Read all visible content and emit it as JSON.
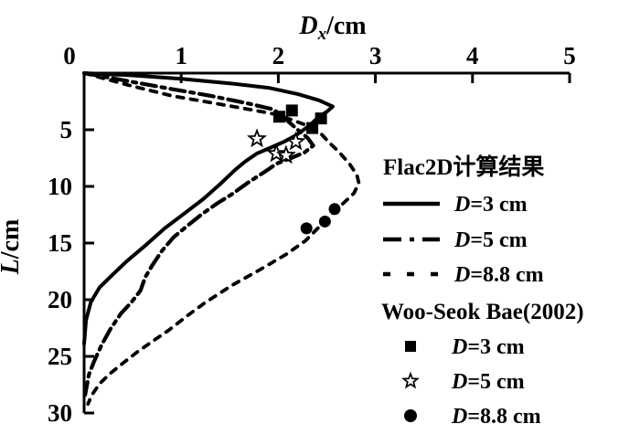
{
  "figure": {
    "background": "#ffffff",
    "ink_color": "#000000"
  },
  "axes": {
    "x": {
      "title_var": "D",
      "title_sub": "x",
      "title_unit": "/cm",
      "ticks": [
        0,
        1,
        2,
        3,
        4,
        5
      ],
      "min": 0,
      "max": 5,
      "position": "top"
    },
    "y": {
      "title_var": "L",
      "title_unit": "/cm",
      "ticks": [
        5,
        10,
        15,
        20,
        25,
        30
      ],
      "min": 0,
      "max": 30,
      "direction": "downward"
    }
  },
  "legend": {
    "group1_title": "Flac2D计算结果",
    "group2_title": "Woo-Seok Bae(2002)",
    "items": [
      {
        "var": "D",
        "value": "=3 cm",
        "swatch": "line-solid",
        "sample_dash": ""
      },
      {
        "var": "D",
        "value": "=5 cm",
        "swatch": "line-dashdot",
        "sample_dash": "20 9 5 9"
      },
      {
        "var": "D",
        "value": "=8.8 cm",
        "swatch": "line-dashed",
        "sample_dash": "8 18"
      },
      {
        "var": "D",
        "value": "=3 cm",
        "swatch": "square-filled"
      },
      {
        "var": "D",
        "value": "=5 cm",
        "swatch": "star-open"
      },
      {
        "var": "D",
        "value": "=8.8 cm",
        "swatch": "circle-filled"
      }
    ]
  },
  "chart_data": {
    "type": "line",
    "title": "Dx/cm vs L/cm (horizontal displacement vs depth)",
    "xlabel": "Dx/cm",
    "ylabel": "L/cm",
    "xlim": [
      0,
      5
    ],
    "ylim": [
      0,
      30
    ],
    "y_inverted": true,
    "grid": false,
    "legend_position": "right",
    "series": [
      {
        "name": "Flac2D D=3 cm",
        "style": "solid",
        "dash": "",
        "stroke_width": 4,
        "points": [
          [
            0,
            0
          ],
          [
            0.5,
            0.2
          ],
          [
            1.0,
            0.5
          ],
          [
            1.5,
            0.9
          ],
          [
            1.9,
            1.3
          ],
          [
            2.2,
            1.85
          ],
          [
            2.42,
            2.4
          ],
          [
            2.56,
            2.95
          ],
          [
            2.5,
            3.4
          ],
          [
            2.42,
            3.85
          ],
          [
            2.31,
            4.7
          ],
          [
            2.18,
            5.5
          ],
          [
            2.05,
            6.1
          ],
          [
            1.9,
            6.65
          ],
          [
            1.78,
            7.1
          ],
          [
            1.66,
            7.8
          ],
          [
            1.56,
            8.5
          ],
          [
            1.4,
            9.8
          ],
          [
            1.23,
            11.1
          ],
          [
            1.03,
            12.4
          ],
          [
            0.83,
            13.7
          ],
          [
            0.62,
            15.3
          ],
          [
            0.44,
            16.6
          ],
          [
            0.28,
            17.9
          ],
          [
            0.16,
            18.9
          ],
          [
            0.07,
            20.2
          ],
          [
            0.02,
            21.8
          ],
          [
            0,
            23.9
          ]
        ]
      },
      {
        "name": "Flac2D D=5 cm",
        "style": "dash-dot",
        "dash": "16 6 4 6",
        "stroke_width": 4.2,
        "points": [
          [
            0,
            0
          ],
          [
            0.45,
            0.7
          ],
          [
            0.9,
            1.4
          ],
          [
            1.3,
            2.0
          ],
          [
            1.7,
            2.7
          ],
          [
            1.95,
            3.2
          ],
          [
            2.08,
            4.1
          ],
          [
            2.2,
            5.0
          ],
          [
            2.3,
            5.7
          ],
          [
            2.36,
            6.4
          ],
          [
            2.27,
            7.0
          ],
          [
            2.13,
            7.5
          ],
          [
            1.98,
            8.0
          ],
          [
            1.88,
            8.6
          ],
          [
            1.7,
            9.6
          ],
          [
            1.52,
            10.7
          ],
          [
            1.37,
            11.5
          ],
          [
            1.22,
            12.4
          ],
          [
            1.06,
            13.5
          ],
          [
            0.92,
            14.5
          ],
          [
            0.8,
            15.7
          ],
          [
            0.7,
            17.0
          ],
          [
            0.63,
            18.0
          ],
          [
            0.58,
            19.2
          ],
          [
            0.48,
            20.3
          ],
          [
            0.38,
            21.2
          ],
          [
            0.27,
            22.6
          ],
          [
            0.18,
            24.0
          ],
          [
            0.1,
            25.5
          ],
          [
            0.05,
            26.6
          ],
          [
            0.01,
            28.4
          ]
        ]
      },
      {
        "name": "Flac2D D=8.8 cm",
        "style": "dashed",
        "dash": "7 8",
        "stroke_width": 3.8,
        "points": [
          [
            0,
            0
          ],
          [
            0.45,
            1.05
          ],
          [
            0.9,
            2.0
          ],
          [
            1.3,
            2.6
          ],
          [
            1.7,
            3.2
          ],
          [
            1.95,
            3.6
          ],
          [
            2.15,
            4.15
          ],
          [
            2.32,
            4.7
          ],
          [
            2.44,
            5.35
          ],
          [
            2.52,
            6.1
          ],
          [
            2.63,
            7.0
          ],
          [
            2.74,
            8.1
          ],
          [
            2.81,
            9.0
          ],
          [
            2.83,
            9.7
          ],
          [
            2.78,
            10.6
          ],
          [
            2.68,
            11.4
          ],
          [
            2.58,
            12.2
          ],
          [
            2.44,
            13.4
          ],
          [
            2.28,
            14.8
          ],
          [
            2.08,
            16.0
          ],
          [
            1.9,
            16.9
          ],
          [
            1.76,
            17.6
          ],
          [
            1.55,
            18.6
          ],
          [
            1.4,
            19.4
          ],
          [
            1.24,
            20.3
          ],
          [
            1.05,
            21.5
          ],
          [
            0.87,
            22.7
          ],
          [
            0.7,
            23.7
          ],
          [
            0.55,
            24.6
          ],
          [
            0.4,
            25.6
          ],
          [
            0.27,
            26.5
          ],
          [
            0.16,
            27.4
          ],
          [
            0.08,
            28.4
          ],
          [
            0.04,
            29.2
          ]
        ]
      }
    ],
    "scatter": [
      {
        "name": "Woo-Seok Bae(2002) D=3 cm",
        "marker": "square-filled",
        "points": [
          [
            2.01,
            3.85
          ],
          [
            2.14,
            3.3
          ],
          [
            2.44,
            4.0
          ],
          [
            2.35,
            4.85
          ]
        ]
      },
      {
        "name": "Woo-Seok Bae(2002) D=5 cm",
        "marker": "star-open",
        "points": [
          [
            1.78,
            5.8
          ],
          [
            2.18,
            6.05
          ],
          [
            1.98,
            7.1
          ],
          [
            2.08,
            7.25
          ]
        ]
      },
      {
        "name": "Woo-Seok Bae(2002) D=8.8 cm",
        "marker": "circle-filled",
        "points": [
          [
            2.58,
            12.0
          ],
          [
            2.48,
            13.1
          ],
          [
            2.29,
            13.7
          ]
        ]
      }
    ]
  }
}
